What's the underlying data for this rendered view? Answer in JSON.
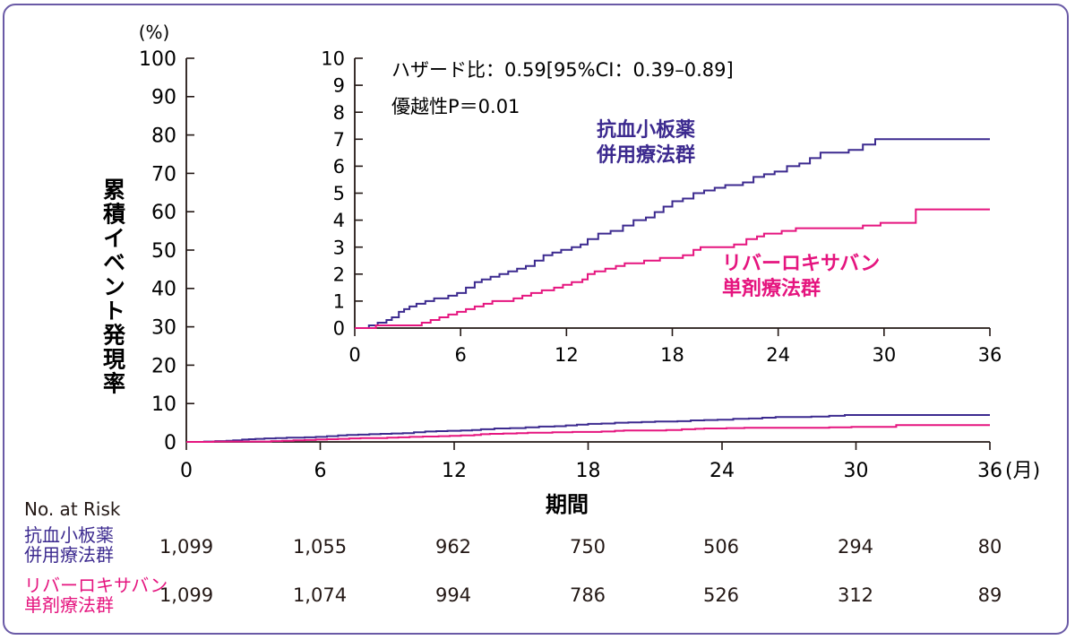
{
  "chart_data": {
    "type": "line",
    "ylabel": "累積イベント発現率",
    "yunit": "(%)",
    "xlabel": "期間",
    "xunit": "(月)",
    "main": {
      "xlim": [
        0,
        36
      ],
      "ylim": [
        0,
        100
      ],
      "xticks": [
        0,
        6,
        12,
        18,
        24,
        30,
        36
      ],
      "yticks": [
        0,
        10,
        20,
        30,
        40,
        50,
        60,
        70,
        80,
        90,
        100
      ]
    },
    "inset": {
      "xlim": [
        0,
        36
      ],
      "ylim": [
        0,
        10
      ],
      "xticks": [
        0,
        6,
        12,
        18,
        24,
        30,
        36
      ],
      "yticks": [
        0,
        1,
        2,
        3,
        4,
        5,
        6,
        7,
        8,
        9,
        10
      ],
      "annotation_line1": "ハザード比：0.59[95%CI：0.39–0.89]",
      "annotation_line2": "優越性P＝0.01"
    },
    "series": [
      {
        "name_line1": "抗血小板薬",
        "name_line2": "併用療法群",
        "color": "#3c2a8f",
        "points": [
          [
            0,
            0
          ],
          [
            0.8,
            0.1
          ],
          [
            1.3,
            0.2
          ],
          [
            1.8,
            0.3
          ],
          [
            2.1,
            0.4
          ],
          [
            2.5,
            0.6
          ],
          [
            2.8,
            0.7
          ],
          [
            3.1,
            0.8
          ],
          [
            3.5,
            0.9
          ],
          [
            4.0,
            1.0
          ],
          [
            4.5,
            1.1
          ],
          [
            5.3,
            1.2
          ],
          [
            5.8,
            1.3
          ],
          [
            6.3,
            1.5
          ],
          [
            6.8,
            1.7
          ],
          [
            7.2,
            1.8
          ],
          [
            7.7,
            1.9
          ],
          [
            8.2,
            2.0
          ],
          [
            8.7,
            2.1
          ],
          [
            9.2,
            2.2
          ],
          [
            9.7,
            2.3
          ],
          [
            10.2,
            2.5
          ],
          [
            10.7,
            2.7
          ],
          [
            11.2,
            2.8
          ],
          [
            11.7,
            2.9
          ],
          [
            12.3,
            3.0
          ],
          [
            12.8,
            3.1
          ],
          [
            13.2,
            3.3
          ],
          [
            13.8,
            3.5
          ],
          [
            14.5,
            3.6
          ],
          [
            15.2,
            3.8
          ],
          [
            15.8,
            4.0
          ],
          [
            16.5,
            4.1
          ],
          [
            17.0,
            4.3
          ],
          [
            17.5,
            4.5
          ],
          [
            18.0,
            4.7
          ],
          [
            18.6,
            4.8
          ],
          [
            19.2,
            5.0
          ],
          [
            19.8,
            5.1
          ],
          [
            20.4,
            5.2
          ],
          [
            21.0,
            5.3
          ],
          [
            22.0,
            5.4
          ],
          [
            22.6,
            5.6
          ],
          [
            23.2,
            5.7
          ],
          [
            23.8,
            5.8
          ],
          [
            24.5,
            6.0
          ],
          [
            25.2,
            6.1
          ],
          [
            25.8,
            6.3
          ],
          [
            26.4,
            6.5
          ],
          [
            28.0,
            6.6
          ],
          [
            28.8,
            6.8
          ],
          [
            29.5,
            7.0
          ],
          [
            36,
            7.0
          ]
        ]
      },
      {
        "name_line1": "リバーロキサバン",
        "name_line2": "単剤療法群",
        "color": "#e5157f",
        "points": [
          [
            0,
            0
          ],
          [
            1.2,
            0.1
          ],
          [
            3.8,
            0.2
          ],
          [
            4.3,
            0.3
          ],
          [
            4.8,
            0.4
          ],
          [
            5.3,
            0.5
          ],
          [
            5.8,
            0.6
          ],
          [
            6.3,
            0.7
          ],
          [
            6.8,
            0.8
          ],
          [
            7.3,
            0.9
          ],
          [
            7.8,
            1.0
          ],
          [
            9.0,
            1.1
          ],
          [
            9.5,
            1.2
          ],
          [
            10.0,
            1.3
          ],
          [
            10.6,
            1.4
          ],
          [
            11.3,
            1.5
          ],
          [
            11.8,
            1.6
          ],
          [
            12.3,
            1.7
          ],
          [
            12.9,
            1.8
          ],
          [
            13.2,
            2.0
          ],
          [
            13.6,
            2.1
          ],
          [
            14.2,
            2.2
          ],
          [
            14.8,
            2.3
          ],
          [
            15.3,
            2.4
          ],
          [
            16.4,
            2.5
          ],
          [
            17.3,
            2.6
          ],
          [
            18.6,
            2.7
          ],
          [
            19.2,
            2.9
          ],
          [
            19.6,
            3.0
          ],
          [
            21.5,
            3.1
          ],
          [
            22.2,
            3.3
          ],
          [
            22.8,
            3.4
          ],
          [
            23.2,
            3.5
          ],
          [
            24.2,
            3.6
          ],
          [
            25.0,
            3.7
          ],
          [
            28.8,
            3.8
          ],
          [
            29.8,
            3.9
          ],
          [
            31.8,
            4.4
          ],
          [
            36,
            4.4
          ]
        ]
      }
    ]
  },
  "risk_table": {
    "title": "No. at Risk",
    "groups": [
      {
        "label_line1": "抗血小板薬",
        "label_line2": "併用療法群",
        "values": [
          "1,099",
          "1,055",
          "962",
          "750",
          "506",
          "294",
          "80"
        ]
      },
      {
        "label_line1": "リバーロキサバン",
        "label_line2": "単剤療法群",
        "values": [
          "1,099",
          "1,074",
          "994",
          "786",
          "526",
          "312",
          "89"
        ]
      }
    ]
  }
}
